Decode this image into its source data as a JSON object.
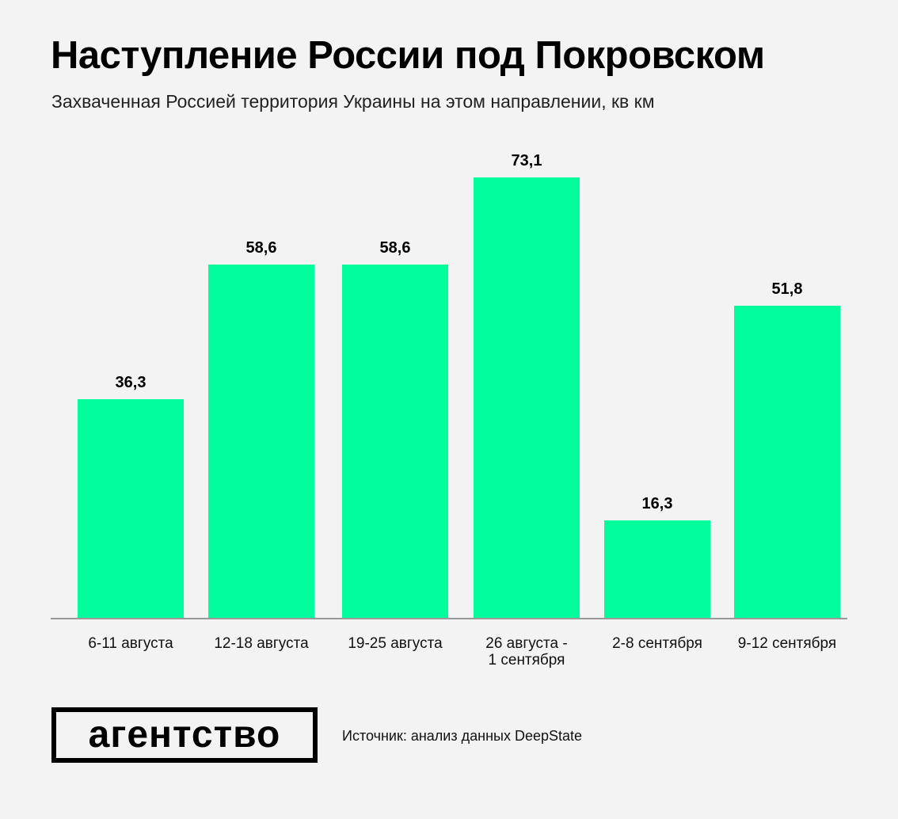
{
  "header": {
    "title": "Наступление России под Покровском",
    "subtitle": "Захваченная Россией территория Украины на этом направлении, кв км"
  },
  "colors": {
    "background": "#f3f3f3",
    "bar": "#00ff9c",
    "axis": "#9a9a9a",
    "text": "#000000"
  },
  "bars": [
    {
      "label": "6-11 августа",
      "value_label": "36,3"
    },
    {
      "label": "12-18 августа",
      "value_label": "58,6"
    },
    {
      "label": "19-25 августа",
      "value_label": "58,6"
    },
    {
      "label": "26 августа  -\n1 сентября",
      "value_label": "73,1"
    },
    {
      "label": "2-8 сентября",
      "value_label": "16,3"
    },
    {
      "label": "9-12 сентября",
      "value_label": "51,8"
    }
  ],
  "footer": {
    "logo": "агентство",
    "source": "Источник: анализ данных DeepState"
  },
  "chart_data": {
    "type": "bar",
    "title": "Наступление России под Покровском",
    "subtitle": "Захваченная Россией территория Украины на этом направлении, кв км",
    "categories": [
      "6-11 августа",
      "12-18 августа",
      "19-25 августа",
      "26 августа - 1 сентября",
      "2-8 сентября",
      "9-12 сентября"
    ],
    "values": [
      36.3,
      58.6,
      58.6,
      73.1,
      16.3,
      51.8
    ],
    "xlabel": "",
    "ylabel": "кв км",
    "ylim": [
      0,
      73.1
    ],
    "grid": false,
    "legend": null,
    "data_labels": true,
    "source": "Источник: анализ данных DeepState"
  }
}
